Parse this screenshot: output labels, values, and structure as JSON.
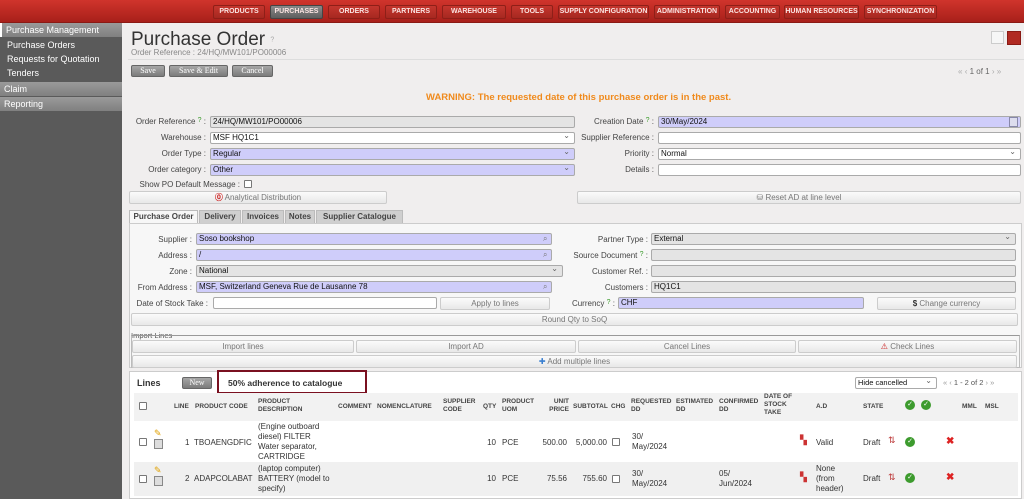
{
  "nav": {
    "items": [
      "PRODUCTS",
      "PURCHASES",
      "ORDERS",
      "PARTNERS",
      "WAREHOUSE",
      "TOOLS",
      "SUPPLY CONFIGURATION",
      "ADMINISTRATION",
      "ACCOUNTING",
      "HUMAN RESOURCES",
      "SYNCHRONIZATION"
    ],
    "active": "PURCHASES"
  },
  "sidebar": {
    "sections": [
      {
        "label": "Purchase Management",
        "items": [
          "Purchase Orders",
          "Requests for Quotation",
          "Tenders"
        ]
      },
      {
        "label": "Claim"
      },
      {
        "label": "Reporting"
      }
    ]
  },
  "header": {
    "title": "Purchase Order",
    "help": "?",
    "subtitle": "Order Reference : 24/HQ/MW101/PO00006"
  },
  "toolbar": {
    "save": "Save",
    "save_edit": "Save & Edit",
    "cancel": "Cancel",
    "pager": "1 of 1"
  },
  "warning": "WARNING: The requested date of this purchase order is in the past.",
  "form": {
    "order_reference": {
      "label": "Order Reference",
      "value": "24/HQ/MW101/PO00006"
    },
    "warehouse": {
      "label": "Warehouse :",
      "value": "MSF HQ1C1"
    },
    "order_type": {
      "label": "Order Type :",
      "value": "Regular"
    },
    "order_category": {
      "label": "Order category :",
      "value": "Other"
    },
    "show_po_msg": {
      "label": "Show PO Default Message :",
      "checked": false
    },
    "creation_date": {
      "label": "Creation Date",
      "value": "30/May/2024"
    },
    "supplier_reference": {
      "label": "Supplier Reference :",
      "value": ""
    },
    "priority": {
      "label": "Priority :",
      "value": "Normal"
    },
    "details": {
      "label": "Details :",
      "value": ""
    },
    "analytical_distribution": "Analytical Distribution",
    "reset_ad": "Reset AD at line level"
  },
  "tabs": [
    "Purchase Order",
    "Delivery",
    "Invoices",
    "Notes",
    "Supplier Catalogue"
  ],
  "po_tab": {
    "supplier": {
      "label": "Supplier :",
      "value": "Soso bookshop"
    },
    "address": {
      "label": "Address :",
      "value": "/"
    },
    "zone": {
      "label": "Zone :",
      "value": "National"
    },
    "from_address": {
      "label": "From Address :",
      "value": "MSF, Switzerland Geneva Rue de Lausanne 78"
    },
    "date_stock_take": {
      "label": "Date of Stock Take :",
      "value": ""
    },
    "apply_to_lines": "Apply to lines",
    "partner_type": {
      "label": "Partner Type :",
      "value": "External"
    },
    "source_document": {
      "label": "Source Document",
      "value": ""
    },
    "customer_ref": {
      "label": "Customer Ref. :",
      "value": ""
    },
    "customers": {
      "label": "Customers :",
      "value": "HQ1C1"
    },
    "currency": {
      "label": "Currency",
      "value": "CHF"
    },
    "change_currency": "Change currency",
    "round_qty": "Round Qty to SoQ",
    "import_lines_legend": "Import Lines",
    "import_lines": "Import lines",
    "import_ad": "Import AD",
    "cancel_lines": "Cancel Lines",
    "check_lines": "Check Lines",
    "add_multiple": "Add multiple lines"
  },
  "lines": {
    "title": "Lines",
    "new": "New",
    "adherence": "50% adherence to catalogue",
    "filter": "Hide cancelled",
    "pager": "1 - 2 of 2",
    "columns": [
      "LINE",
      "PRODUCT CODE",
      "PRODUCT DESCRIPTION",
      "COMMENT",
      "NOMENCLATURE",
      "SUPPLIER CODE",
      "QTY",
      "PRODUCT UOM",
      "UNIT PRICE",
      "SUBTOTAL",
      "CHG",
      "REQUESTED DD",
      "ESTIMATED DD",
      "CONFIRMED DD",
      "DATE OF STOCK TAKE",
      "A.D",
      "STATE",
      "MML",
      "MSL"
    ],
    "rows": [
      {
        "line": "1",
        "code": "TBOAENGDFIC",
        "desc": "(Engine outboard diesel) FILTER Water separator, CARTRIDGE",
        "qty": "10",
        "uom": "PCE",
        "price": "500.00",
        "subtotal": "5,000.00",
        "requested": "30/ May/2024",
        "confirmed": "",
        "ad": "Valid",
        "state": "Draft"
      },
      {
        "line": "2",
        "code": "ADAPCOLABAT",
        "desc": "(laptop computer) BATTERY (model to specify)",
        "qty": "10",
        "uom": "PCE",
        "price": "75.56",
        "subtotal": "755.60",
        "requested": "30/ May/2024",
        "confirmed": "05/ Jun/2024",
        "ad": "None (from header)",
        "state": "Draft"
      }
    ]
  },
  "colors": {
    "nav": "#b8261f",
    "warning": "#f08a1c",
    "required": "#cfcdfa",
    "highlight_box": "#7a1020"
  }
}
